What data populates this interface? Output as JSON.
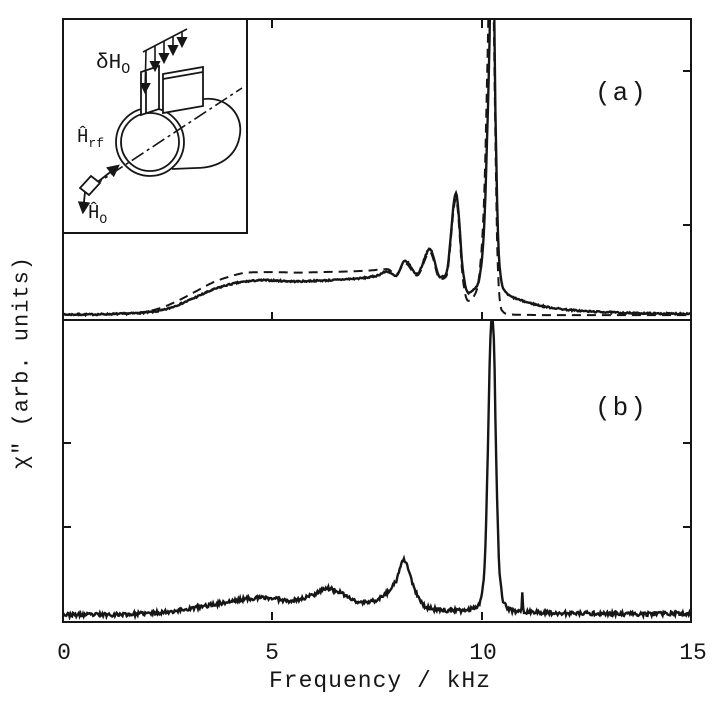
{
  "figure": {
    "xlabel": "Frequency / kHz",
    "ylabel": "χ″ (arb. units)",
    "x_tick_labels": [
      "0",
      "5",
      "10",
      "15"
    ],
    "panel_a_label": "(a)",
    "panel_b_label": "(b)",
    "line_color": "#161616",
    "background": "#ffffff"
  },
  "inset": {
    "description": "sketch of split-ring resonator coil showing field directions",
    "labels": {
      "modulation_field_base": "δH",
      "modulation_field_sub": "O",
      "rf_field_base": "Ĥ",
      "rf_field_sub": "rf",
      "static_field_base": "Ĥ",
      "static_field_sub": "O"
    }
  },
  "chart_data": [
    {
      "id": "a",
      "type": "line",
      "panel_label": "(a)",
      "xlabel": "Frequency / kHz",
      "ylabel": "χ″ (arb. units)",
      "xlim": [
        0,
        15
      ],
      "x_ticks": [
        0,
        5,
        10,
        15
      ],
      "ylim": [
        0,
        100
      ],
      "grid": false,
      "legend": "none",
      "notes": "absorption spectrum chi'' vs frequency; solid experimental trace and dashed calculated trace; broad plateau 4.5-8 kHz, small peaks at 8.17 and 8.76 kHz, peak at 9.38 kHz, dominant peak at 10.22 kHz clipped at panel top; dashed curve falls to baseline above 10.5 kHz while solid keeps a small tail",
      "series": [
        {
          "name": "experimental (solid)",
          "style": "solid",
          "noise": 0.25,
          "seed": 7,
          "points": [
            [
              0,
              0.5
            ],
            [
              0.5,
              0.5
            ],
            [
              1.0,
              0.6
            ],
            [
              1.5,
              0.8
            ],
            [
              2.0,
              1.2
            ],
            [
              2.4,
              2
            ],
            [
              2.8,
              4
            ],
            [
              3.2,
              6.5
            ],
            [
              3.6,
              9
            ],
            [
              4.0,
              10.8
            ],
            [
              4.4,
              11.8
            ],
            [
              4.8,
              12.2
            ],
            [
              5.2,
              12.0
            ],
            [
              5.6,
              11.8
            ],
            [
              6.0,
              12.0
            ],
            [
              6.4,
              12.2
            ],
            [
              6.8,
              12.6
            ],
            [
              7.2,
              13.0
            ],
            [
              7.5,
              13.8
            ],
            [
              7.75,
              15.2
            ],
            [
              7.95,
              13.6
            ],
            [
              8.17,
              18.8
            ],
            [
              8.45,
              14.4
            ],
            [
              8.76,
              22.8
            ],
            [
              9.0,
              13.4
            ],
            [
              9.15,
              14.5
            ],
            [
              9.38,
              42
            ],
            [
              9.55,
              15
            ],
            [
              9.67,
              7.8
            ],
            [
              9.8,
              9
            ],
            [
              9.95,
              14
            ],
            [
              10.05,
              30
            ],
            [
              10.12,
              60
            ],
            [
              10.18,
              95
            ],
            [
              10.22,
              130
            ],
            [
              10.26,
              130
            ],
            [
              10.32,
              70
            ],
            [
              10.38,
              28
            ],
            [
              10.45,
              13
            ],
            [
              10.55,
              8.5
            ],
            [
              10.65,
              7
            ],
            [
              10.8,
              6
            ],
            [
              11.0,
              5
            ],
            [
              11.2,
              4.2
            ],
            [
              11.5,
              3.2
            ],
            [
              12.0,
              2.2
            ],
            [
              12.5,
              1.6
            ],
            [
              13.0,
              1.3
            ],
            [
              13.5,
              1.0
            ],
            [
              14.0,
              0.9
            ],
            [
              14.5,
              0.8
            ],
            [
              15,
              0.8
            ]
          ]
        },
        {
          "name": "calculated (dashed)",
          "style": "dashed",
          "noise": 0,
          "seed": 11,
          "points": [
            [
              0,
              0.4
            ],
            [
              0.8,
              0.5
            ],
            [
              1.5,
              0.8
            ],
            [
              2.0,
              1.5
            ],
            [
              2.4,
              3
            ],
            [
              2.8,
              5.5
            ],
            [
              3.2,
              8.5
            ],
            [
              3.6,
              11.5
            ],
            [
              4.0,
              13.5
            ],
            [
              4.4,
              14.8
            ],
            [
              5.0,
              15.0
            ],
            [
              5.6,
              14.8
            ],
            [
              6.2,
              15.0
            ],
            [
              6.8,
              15.2
            ],
            [
              7.3,
              15.5
            ],
            [
              7.75,
              16.0
            ],
            [
              7.95,
              14.2
            ],
            [
              8.17,
              18.0
            ],
            [
              8.45,
              13.8
            ],
            [
              8.76,
              21.8
            ],
            [
              9.0,
              12.6
            ],
            [
              9.15,
              13.5
            ],
            [
              9.38,
              40
            ],
            [
              9.55,
              12
            ],
            [
              9.67,
              5.2
            ],
            [
              9.8,
              6.5
            ],
            [
              9.95,
              16
            ],
            [
              10.05,
              40
            ],
            [
              10.12,
              80
            ],
            [
              10.18,
              120
            ],
            [
              10.24,
              130
            ],
            [
              10.3,
              80
            ],
            [
              10.36,
              25
            ],
            [
              10.42,
              6
            ],
            [
              10.5,
              1.5
            ],
            [
              10.65,
              0.6
            ],
            [
              11.0,
              0.4
            ],
            [
              12.0,
              0.3
            ],
            [
              13.0,
              0.3
            ],
            [
              14.0,
              0.3
            ],
            [
              15,
              0.3
            ]
          ]
        }
      ]
    },
    {
      "id": "b",
      "type": "line",
      "panel_label": "(b)",
      "xlabel": "Frequency / kHz",
      "ylabel": "χ″ (arb. units)",
      "xlim": [
        0,
        15
      ],
      "x_ticks": [
        0,
        5,
        10,
        15
      ],
      "ylim": [
        0,
        100
      ],
      "grid": false,
      "legend": "none",
      "notes": "noisy single experimental trace; broad weak humps near 4.8 and 6.3 kHz, distinct peak at 8.15 kHz, sharp dominant peak at 10.24 kHz reaching panel top, narrow spike at 10.96 kHz",
      "series": [
        {
          "name": "experimental (solid, noisy)",
          "style": "solid",
          "noise": 0.7,
          "seed": 23,
          "points": [
            [
              0,
              1.2
            ],
            [
              0.5,
              1.1
            ],
            [
              1.0,
              1.2
            ],
            [
              1.5,
              1.3
            ],
            [
              2.0,
              1.6
            ],
            [
              2.5,
              2.2
            ],
            [
              3.0,
              3.2
            ],
            [
              3.5,
              4.5
            ],
            [
              4.0,
              5.8
            ],
            [
              4.4,
              6.8
            ],
            [
              4.8,
              7.2
            ],
            [
              5.1,
              6.8
            ],
            [
              5.4,
              6.2
            ],
            [
              5.7,
              6.8
            ],
            [
              6.0,
              8.5
            ],
            [
              6.3,
              10.5
            ],
            [
              6.5,
              9.8
            ],
            [
              6.8,
              7.5
            ],
            [
              7.1,
              5.5
            ],
            [
              7.4,
              6
            ],
            [
              7.7,
              8.5
            ],
            [
              7.95,
              13
            ],
            [
              8.15,
              20.5
            ],
            [
              8.35,
              12
            ],
            [
              8.55,
              5.5
            ],
            [
              8.75,
              3.5
            ],
            [
              9.0,
              3.0
            ],
            [
              9.3,
              2.6
            ],
            [
              9.6,
              2.8
            ],
            [
              9.85,
              4
            ],
            [
              10.0,
              9
            ],
            [
              10.08,
              25
            ],
            [
              10.14,
              60
            ],
            [
              10.19,
              95
            ],
            [
              10.24,
              107
            ],
            [
              10.29,
              95
            ],
            [
              10.34,
              55
            ],
            [
              10.4,
              22
            ],
            [
              10.48,
              8
            ],
            [
              10.58,
              4
            ],
            [
              10.7,
              2.8
            ],
            [
              10.85,
              2.4
            ],
            [
              10.93,
              2.4
            ],
            [
              10.96,
              8.5
            ],
            [
              10.99,
              2.4
            ],
            [
              11.3,
              2.0
            ],
            [
              11.7,
              1.8
            ],
            [
              12.2,
              1.6
            ],
            [
              12.8,
              1.6
            ],
            [
              13.4,
              1.4
            ],
            [
              14.0,
              1.4
            ],
            [
              14.6,
              1.6
            ],
            [
              15,
              1.5
            ]
          ]
        }
      ]
    }
  ]
}
